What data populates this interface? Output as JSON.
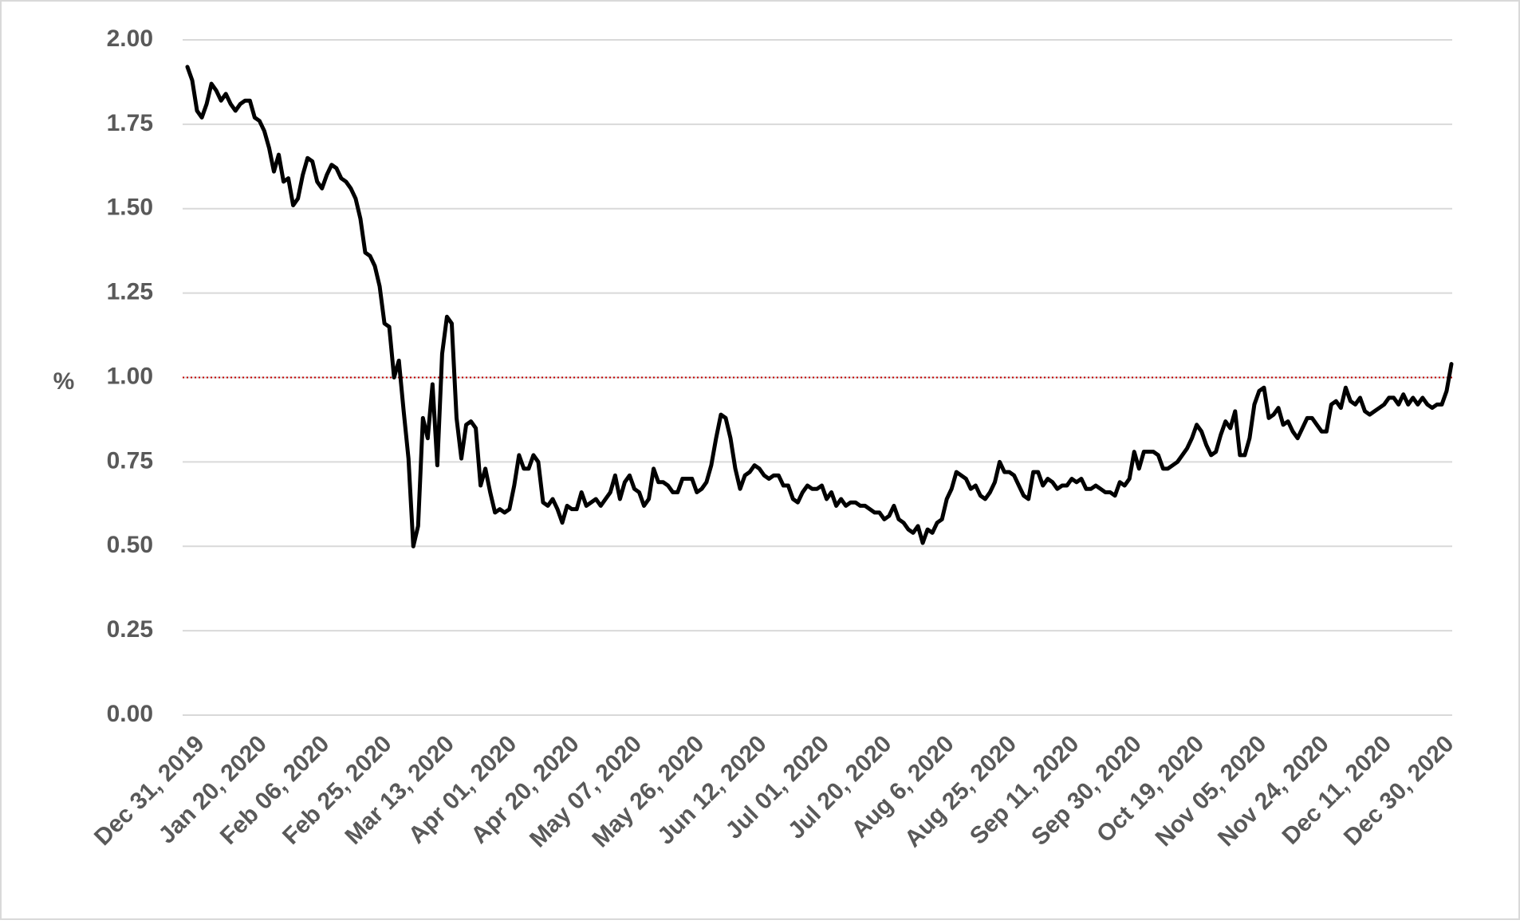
{
  "chart_data": {
    "type": "line",
    "y_label": "%",
    "color": "#000000",
    "grid": true,
    "reference_line": {
      "value": 1,
      "color": "#c00000"
    },
    "ylim": [
      0,
      2
    ],
    "yticks": [
      {
        "value": 0,
        "label": "0.00"
      },
      {
        "value": 0.25,
        "label": "0.25"
      },
      {
        "value": 0.5,
        "label": "0.50"
      },
      {
        "value": 0.75,
        "label": "0.75"
      },
      {
        "value": 1,
        "label": "1.00"
      },
      {
        "value": 1.25,
        "label": "1.25"
      },
      {
        "value": 1.5,
        "label": "1.50"
      },
      {
        "value": 1.75,
        "label": "1.75"
      },
      {
        "value": 2,
        "label": "2.00"
      }
    ],
    "categories": [
      "Dec 31, 2019",
      null,
      null,
      null,
      null,
      null,
      null,
      null,
      null,
      null,
      null,
      null,
      null,
      "Jan 20, 2020",
      null,
      null,
      null,
      null,
      null,
      null,
      null,
      null,
      null,
      null,
      null,
      null,
      "Feb 06, 2020",
      null,
      null,
      null,
      null,
      null,
      null,
      null,
      null,
      null,
      null,
      null,
      null,
      "Feb 25, 2020",
      null,
      null,
      null,
      null,
      null,
      null,
      null,
      null,
      null,
      null,
      null,
      null,
      "Mar 13, 2020",
      null,
      null,
      null,
      null,
      null,
      null,
      null,
      null,
      null,
      null,
      null,
      null,
      "Apr 01, 2020",
      null,
      null,
      null,
      null,
      null,
      null,
      null,
      null,
      null,
      null,
      null,
      null,
      "Apr 20, 2020",
      null,
      null,
      null,
      null,
      null,
      null,
      null,
      null,
      null,
      null,
      null,
      null,
      "May 07, 2020",
      null,
      null,
      null,
      null,
      null,
      null,
      null,
      null,
      null,
      null,
      null,
      null,
      "May 26, 2020",
      null,
      null,
      null,
      null,
      null,
      null,
      null,
      null,
      null,
      null,
      null,
      null,
      "Jun 12, 2020",
      null,
      null,
      null,
      null,
      null,
      null,
      null,
      null,
      null,
      null,
      null,
      null,
      "Jul 01, 2020",
      null,
      null,
      null,
      null,
      null,
      null,
      null,
      null,
      null,
      null,
      null,
      null,
      "Jul 20, 2020",
      null,
      null,
      null,
      null,
      null,
      null,
      null,
      null,
      null,
      null,
      null,
      null,
      "Aug 6, 2020",
      null,
      null,
      null,
      null,
      null,
      null,
      null,
      null,
      null,
      null,
      null,
      null,
      "Aug 25, 2020",
      null,
      null,
      null,
      null,
      null,
      null,
      null,
      null,
      null,
      null,
      null,
      null,
      "Sep 11, 2020",
      null,
      null,
      null,
      null,
      null,
      null,
      null,
      null,
      null,
      null,
      null,
      null,
      "Sep 30, 2020",
      null,
      null,
      null,
      null,
      null,
      null,
      null,
      null,
      null,
      null,
      null,
      null,
      "Oct 19, 2020",
      null,
      null,
      null,
      null,
      null,
      null,
      null,
      null,
      null,
      null,
      null,
      null,
      "Nov 05, 2020",
      null,
      null,
      null,
      null,
      null,
      null,
      null,
      null,
      null,
      null,
      null,
      null,
      "Nov 24, 2020",
      null,
      null,
      null,
      null,
      null,
      null,
      null,
      null,
      null,
      null,
      null,
      null,
      "Dec 11, 2020",
      null,
      null,
      null,
      null,
      null,
      null,
      null,
      null,
      null,
      null,
      null,
      null,
      "Dec 30, 2020",
      null,
      null,
      null
    ],
    "values": [
      1.92,
      1.88,
      1.79,
      1.77,
      1.81,
      1.87,
      1.85,
      1.82,
      1.84,
      1.81,
      1.79,
      1.81,
      1.82,
      1.82,
      1.77,
      1.76,
      1.73,
      1.68,
      1.61,
      1.66,
      1.58,
      1.59,
      1.51,
      1.53,
      1.6,
      1.65,
      1.64,
      1.58,
      1.56,
      1.6,
      1.63,
      1.62,
      1.59,
      1.58,
      1.56,
      1.53,
      1.47,
      1.37,
      1.36,
      1.33,
      1.27,
      1.16,
      1.15,
      1.0,
      1.05,
      0.9,
      0.76,
      0.5,
      0.56,
      0.88,
      0.82,
      0.98,
      0.74,
      1.07,
      1.18,
      1.16,
      0.88,
      0.76,
      0.86,
      0.87,
      0.85,
      0.68,
      0.73,
      0.66,
      0.6,
      0.61,
      0.6,
      0.61,
      0.68,
      0.77,
      0.73,
      0.73,
      0.77,
      0.75,
      0.63,
      0.62,
      0.64,
      0.61,
      0.57,
      0.62,
      0.61,
      0.61,
      0.66,
      0.62,
      0.63,
      0.64,
      0.62,
      0.64,
      0.66,
      0.71,
      0.64,
      0.69,
      0.71,
      0.67,
      0.66,
      0.62,
      0.64,
      0.73,
      0.69,
      0.69,
      0.68,
      0.66,
      0.66,
      0.7,
      0.7,
      0.7,
      0.66,
      0.67,
      0.69,
      0.74,
      0.82,
      0.89,
      0.88,
      0.82,
      0.73,
      0.67,
      0.71,
      0.72,
      0.74,
      0.73,
      0.71,
      0.7,
      0.71,
      0.71,
      0.68,
      0.68,
      0.64,
      0.63,
      0.66,
      0.68,
      0.67,
      0.67,
      0.68,
      0.64,
      0.66,
      0.62,
      0.64,
      0.62,
      0.63,
      0.63,
      0.62,
      0.62,
      0.61,
      0.6,
      0.6,
      0.58,
      0.59,
      0.62,
      0.58,
      0.57,
      0.55,
      0.54,
      0.56,
      0.51,
      0.55,
      0.54,
      0.57,
      0.58,
      0.64,
      0.67,
      0.72,
      0.71,
      0.7,
      0.67,
      0.68,
      0.65,
      0.64,
      0.66,
      0.69,
      0.75,
      0.72,
      0.72,
      0.71,
      0.68,
      0.65,
      0.64,
      0.72,
      0.72,
      0.68,
      0.7,
      0.69,
      0.67,
      0.68,
      0.68,
      0.7,
      0.69,
      0.7,
      0.67,
      0.67,
      0.68,
      0.67,
      0.66,
      0.66,
      0.65,
      0.69,
      0.68,
      0.7,
      0.78,
      0.73,
      0.78,
      0.78,
      0.78,
      0.77,
      0.73,
      0.73,
      0.74,
      0.75,
      0.77,
      0.79,
      0.82,
      0.86,
      0.84,
      0.8,
      0.77,
      0.78,
      0.83,
      0.87,
      0.85,
      0.9,
      0.77,
      0.77,
      0.82,
      0.92,
      0.96,
      0.97,
      0.88,
      0.89,
      0.91,
      0.86,
      0.87,
      0.84,
      0.82,
      0.85,
      0.88,
      0.88,
      0.86,
      0.84,
      0.84,
      0.92,
      0.93,
      0.91,
      0.97,
      0.93,
      0.92,
      0.94,
      0.9,
      0.89,
      0.9,
      0.91,
      0.92,
      0.94,
      0.94,
      0.92,
      0.95,
      0.92,
      0.94,
      0.92,
      0.94,
      0.92,
      0.91,
      0.92,
      0.92,
      0.96,
      1.04
    ]
  }
}
